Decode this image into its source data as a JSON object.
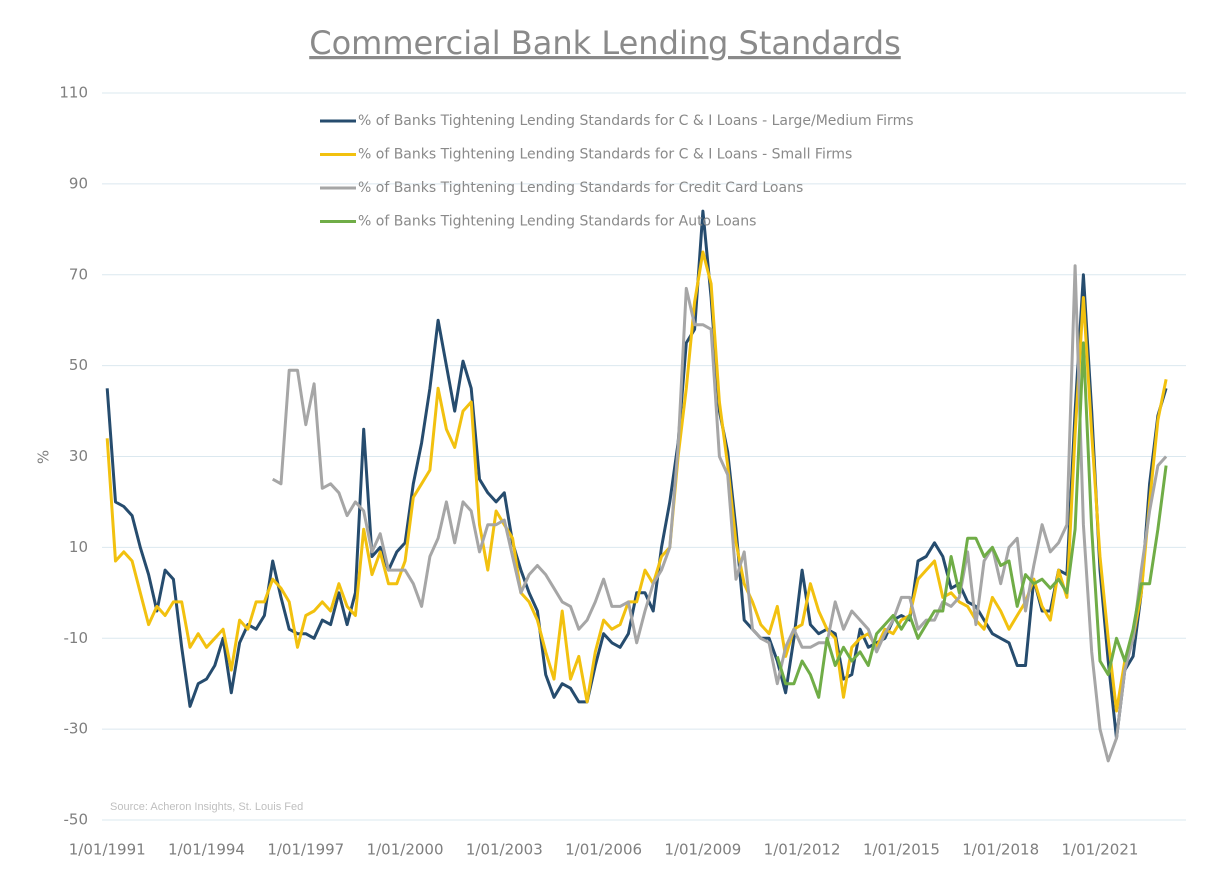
{
  "chart_data": {
    "type": "line",
    "title": "Commercial Bank Lending Standards",
    "y_label": "%",
    "source": "Source: Acheron Insights, St. Louis Fed",
    "x": [
      1991,
      1991.25,
      1991.5,
      1991.75,
      1992,
      1992.25,
      1992.5,
      1992.75,
      1993,
      1993.25,
      1993.5,
      1993.75,
      1994,
      1994.25,
      1994.5,
      1994.75,
      1995,
      1995.25,
      1995.5,
      1995.75,
      1996,
      1996.25,
      1996.5,
      1996.75,
      1997,
      1997.25,
      1997.5,
      1997.75,
      1998,
      1998.25,
      1998.5,
      1998.75,
      1999,
      1999.25,
      1999.5,
      1999.75,
      2000,
      2000.25,
      2000.5,
      2000.75,
      2001,
      2001.25,
      2001.5,
      2001.75,
      2002,
      2002.25,
      2002.5,
      2002.75,
      2003,
      2003.25,
      2003.5,
      2003.75,
      2004,
      2004.25,
      2004.5,
      2004.75,
      2005,
      2005.25,
      2005.5,
      2005.75,
      2006,
      2006.25,
      2006.5,
      2006.75,
      2007,
      2007.25,
      2007.5,
      2007.75,
      2008,
      2008.25,
      2008.5,
      2008.75,
      2009,
      2009.25,
      2009.5,
      2009.75,
      2010,
      2010.25,
      2010.5,
      2010.75,
      2011,
      2011.25,
      2011.5,
      2011.75,
      2012,
      2012.25,
      2012.5,
      2012.75,
      2013,
      2013.25,
      2013.5,
      2013.75,
      2014,
      2014.25,
      2014.5,
      2014.75,
      2015,
      2015.25,
      2015.5,
      2015.75,
      2016,
      2016.25,
      2016.5,
      2016.75,
      2017,
      2017.25,
      2017.5,
      2017.75,
      2018,
      2018.25,
      2018.5,
      2018.75,
      2019,
      2019.25,
      2019.5,
      2019.75,
      2020,
      2020.25,
      2020.5,
      2020.75,
      2021,
      2021.25,
      2021.5,
      2021.75,
      2022,
      2022.25,
      2022.5,
      2022.75,
      2023
    ],
    "series": [
      {
        "name": "% of Banks Tightening Lending Standards for C & I Loans - Large/Medium Firms",
        "color": "#264c6e",
        "values": [
          45,
          20,
          19,
          17,
          10,
          4,
          -4,
          5,
          3,
          -12,
          -25,
          -20,
          -19,
          -16,
          -10,
          -22,
          -11,
          -7,
          -8,
          -5,
          7,
          -1,
          -8,
          -9,
          -9,
          -10,
          -6,
          -7,
          0,
          -7,
          0,
          36,
          8,
          10,
          5,
          9,
          11,
          24,
          33,
          45,
          60,
          50,
          40,
          51,
          45,
          25,
          22,
          20,
          22,
          11,
          5,
          0,
          -4,
          -18,
          -23,
          -20,
          -21,
          -24,
          -24,
          -16,
          -9,
          -11,
          -12,
          -9,
          0,
          0,
          -4,
          10,
          20,
          33,
          55,
          58,
          84,
          65,
          40,
          31,
          14,
          -6,
          -8,
          -10,
          -10,
          -15,
          -22,
          -10,
          5,
          -7,
          -9,
          -8,
          -9,
          -19,
          -18,
          -8,
          -12,
          -11,
          -10,
          -6,
          -5,
          -6,
          7,
          8,
          11,
          8,
          1,
          2,
          -2,
          -3,
          -6,
          -9,
          -10,
          -11,
          -16,
          -16,
          3,
          -4,
          -4,
          5,
          4,
          40,
          70,
          40,
          5,
          -15,
          -32,
          -17,
          -14,
          0,
          24,
          39,
          45
        ]
      },
      {
        "name": "% of Banks Tightening Lending Standards for C & I Loans - Small Firms",
        "color": "#f2c10f",
        "values": [
          34,
          7,
          9,
          7,
          0,
          -7,
          -3,
          -5,
          -2,
          -2,
          -12,
          -9,
          -12,
          -10,
          -8,
          -17,
          -6,
          -8,
          -2,
          -2,
          3,
          1,
          -2,
          -12,
          -5,
          -4,
          -2,
          -4,
          2,
          -3,
          -5,
          14,
          4,
          9,
          2,
          2,
          7,
          21,
          24,
          27,
          45,
          36,
          32,
          40,
          42,
          15,
          5,
          18,
          15,
          12,
          0,
          -2,
          -6,
          -13,
          -19,
          -4,
          -19,
          -14,
          -24,
          -13,
          -6,
          -8,
          -7,
          -2,
          -2,
          5,
          2,
          8,
          10,
          30,
          45,
          64,
          75,
          68,
          42,
          28,
          11,
          2,
          -2,
          -7,
          -9,
          -3,
          -14,
          -8,
          -7,
          2,
          -4,
          -8,
          -10,
          -23,
          -12,
          -10,
          -9,
          -12,
          -8,
          -9,
          -6,
          -5,
          3,
          5,
          7,
          -1,
          0,
          -2,
          -3,
          -6,
          -8,
          -1,
          -4,
          -8,
          -5,
          -2,
          3,
          -3,
          -6,
          5,
          -1,
          35,
          65,
          35,
          8,
          -10,
          -26,
          -15,
          -10,
          0,
          20,
          38,
          47
        ]
      },
      {
        "name": "% of Banks Tightening Lending Standards for Credit Card Loans",
        "color": "#a6a6a6",
        "values": [
          null,
          null,
          null,
          null,
          null,
          null,
          null,
          null,
          null,
          null,
          null,
          null,
          null,
          null,
          null,
          null,
          null,
          null,
          null,
          null,
          25,
          24,
          49,
          49,
          37,
          46,
          23,
          24,
          22,
          17,
          20,
          18,
          9,
          13,
          5,
          5,
          5,
          2,
          -3,
          8,
          12,
          20,
          11,
          20,
          18,
          9,
          15,
          15,
          16,
          8,
          0,
          4,
          6,
          4,
          1,
          -2,
          -3,
          -8,
          -6,
          -2,
          3,
          -3,
          -3,
          -2,
          -11,
          -4,
          2,
          5,
          10,
          32,
          67,
          59,
          59,
          58,
          30,
          26,
          3,
          9,
          -8,
          -10,
          -11,
          -20,
          -12,
          -8,
          -12,
          -12,
          -11,
          -11,
          -2,
          -8,
          -4,
          -6,
          -8,
          -13,
          -9,
          -6,
          -1,
          -1,
          -8,
          -6,
          -6,
          -2,
          -3,
          -1,
          9,
          -7,
          7,
          10,
          2,
          10,
          12,
          -4,
          6,
          15,
          9,
          11,
          15,
          72,
          15,
          -13,
          -30,
          -37,
          -32,
          -17,
          -10,
          5,
          18,
          28,
          30
        ]
      },
      {
        "name": "% of Banks Tightening Lending Standards for Auto Loans",
        "color": "#70ad47",
        "values": [
          null,
          null,
          null,
          null,
          null,
          null,
          null,
          null,
          null,
          null,
          null,
          null,
          null,
          null,
          null,
          null,
          null,
          null,
          null,
          null,
          null,
          null,
          null,
          null,
          null,
          null,
          null,
          null,
          null,
          null,
          null,
          null,
          null,
          null,
          null,
          null,
          null,
          null,
          null,
          null,
          null,
          null,
          null,
          null,
          null,
          null,
          null,
          null,
          null,
          null,
          null,
          null,
          null,
          null,
          null,
          null,
          null,
          null,
          null,
          null,
          null,
          null,
          null,
          null,
          null,
          null,
          null,
          null,
          null,
          null,
          null,
          null,
          null,
          null,
          null,
          null,
          null,
          null,
          null,
          null,
          null,
          -14,
          -20,
          -20,
          -15,
          -18,
          -23,
          -10,
          -16,
          -12,
          -15,
          -13,
          -16,
          -9,
          -7,
          -5,
          -8,
          -5,
          -10,
          -7,
          -4,
          -4,
          8,
          0,
          12,
          12,
          8,
          10,
          6,
          7,
          -3,
          4,
          2,
          3,
          1,
          3,
          0,
          14,
          55,
          14,
          -15,
          -18,
          -10,
          -15,
          -8,
          2,
          2,
          14,
          28
        ]
      }
    ],
    "xlim": [
      1990.6,
      2023.6
    ],
    "xticks": [
      {
        "value": 1991,
        "label": "1/01/1991"
      },
      {
        "value": 1994,
        "label": "1/01/1994"
      },
      {
        "value": 1997,
        "label": "1/01/1997"
      },
      {
        "value": 2000,
        "label": "1/01/2000"
      },
      {
        "value": 2003,
        "label": "1/01/2003"
      },
      {
        "value": 2006,
        "label": "1/01/2006"
      },
      {
        "value": 2009,
        "label": "1/01/2009"
      },
      {
        "value": 2012,
        "label": "1/01/2012"
      },
      {
        "value": 2015,
        "label": "1/01/2015"
      },
      {
        "value": 2018,
        "label": "1/01/2018"
      },
      {
        "value": 2021,
        "label": "1/01/2021"
      }
    ],
    "ylim": [
      -50,
      110
    ],
    "yticks": [
      -50,
      -30,
      -10,
      10,
      30,
      50,
      70,
      90,
      110
    ],
    "grid": true,
    "legend": "top-left"
  }
}
